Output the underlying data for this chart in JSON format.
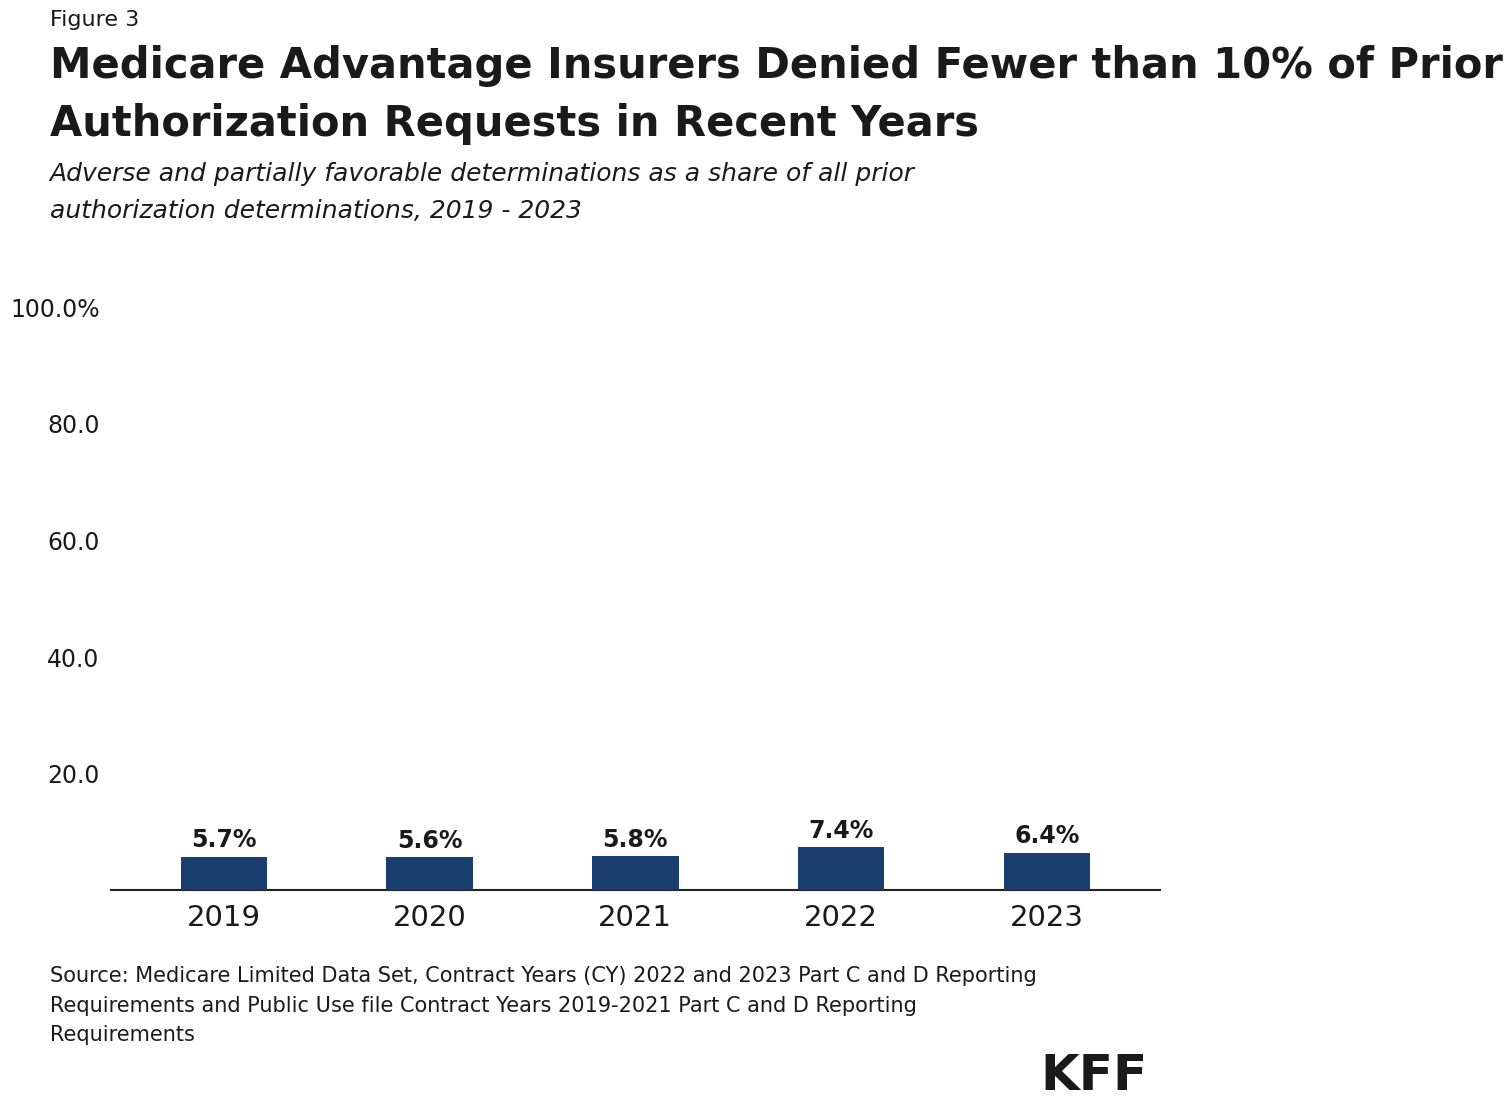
{
  "figure_label": "Figure 3",
  "title_line1": "Medicare Advantage Insurers Denied Fewer than 10% of Prior",
  "title_line2": "Authorization Requests in Recent Years",
  "subtitle_line1": "Adverse and partially favorable determinations as a share of all prior",
  "subtitle_line2": "authorization determinations, 2019 - 2023",
  "categories": [
    "2019",
    "2020",
    "2021",
    "2022",
    "2023"
  ],
  "values": [
    5.7,
    5.6,
    5.8,
    7.4,
    6.4
  ],
  "bar_labels": [
    "5.7%",
    "5.6%",
    "5.8%",
    "7.4%",
    "6.4%"
  ],
  "bar_color": "#1a3f6f",
  "ylim": [
    0,
    100
  ],
  "yticks": [
    0,
    20.0,
    40.0,
    60.0,
    80.0,
    100.0
  ],
  "source_text": "Source: Medicare Limited Data Set, Contract Years (CY) 2022 and 2023 Part C and D Reporting\nRequirements and Public Use file Contract Years 2019-2021 Part C and D Reporting\nRequirements",
  "kff_text": "KFF",
  "background_color": "#ffffff",
  "title_fontsize": 30,
  "subtitle_fontsize": 18,
  "figure_label_fontsize": 16,
  "bar_label_fontsize": 17,
  "ytick_fontsize": 17,
  "xtick_fontsize": 21,
  "source_fontsize": 15,
  "kff_fontsize": 36
}
